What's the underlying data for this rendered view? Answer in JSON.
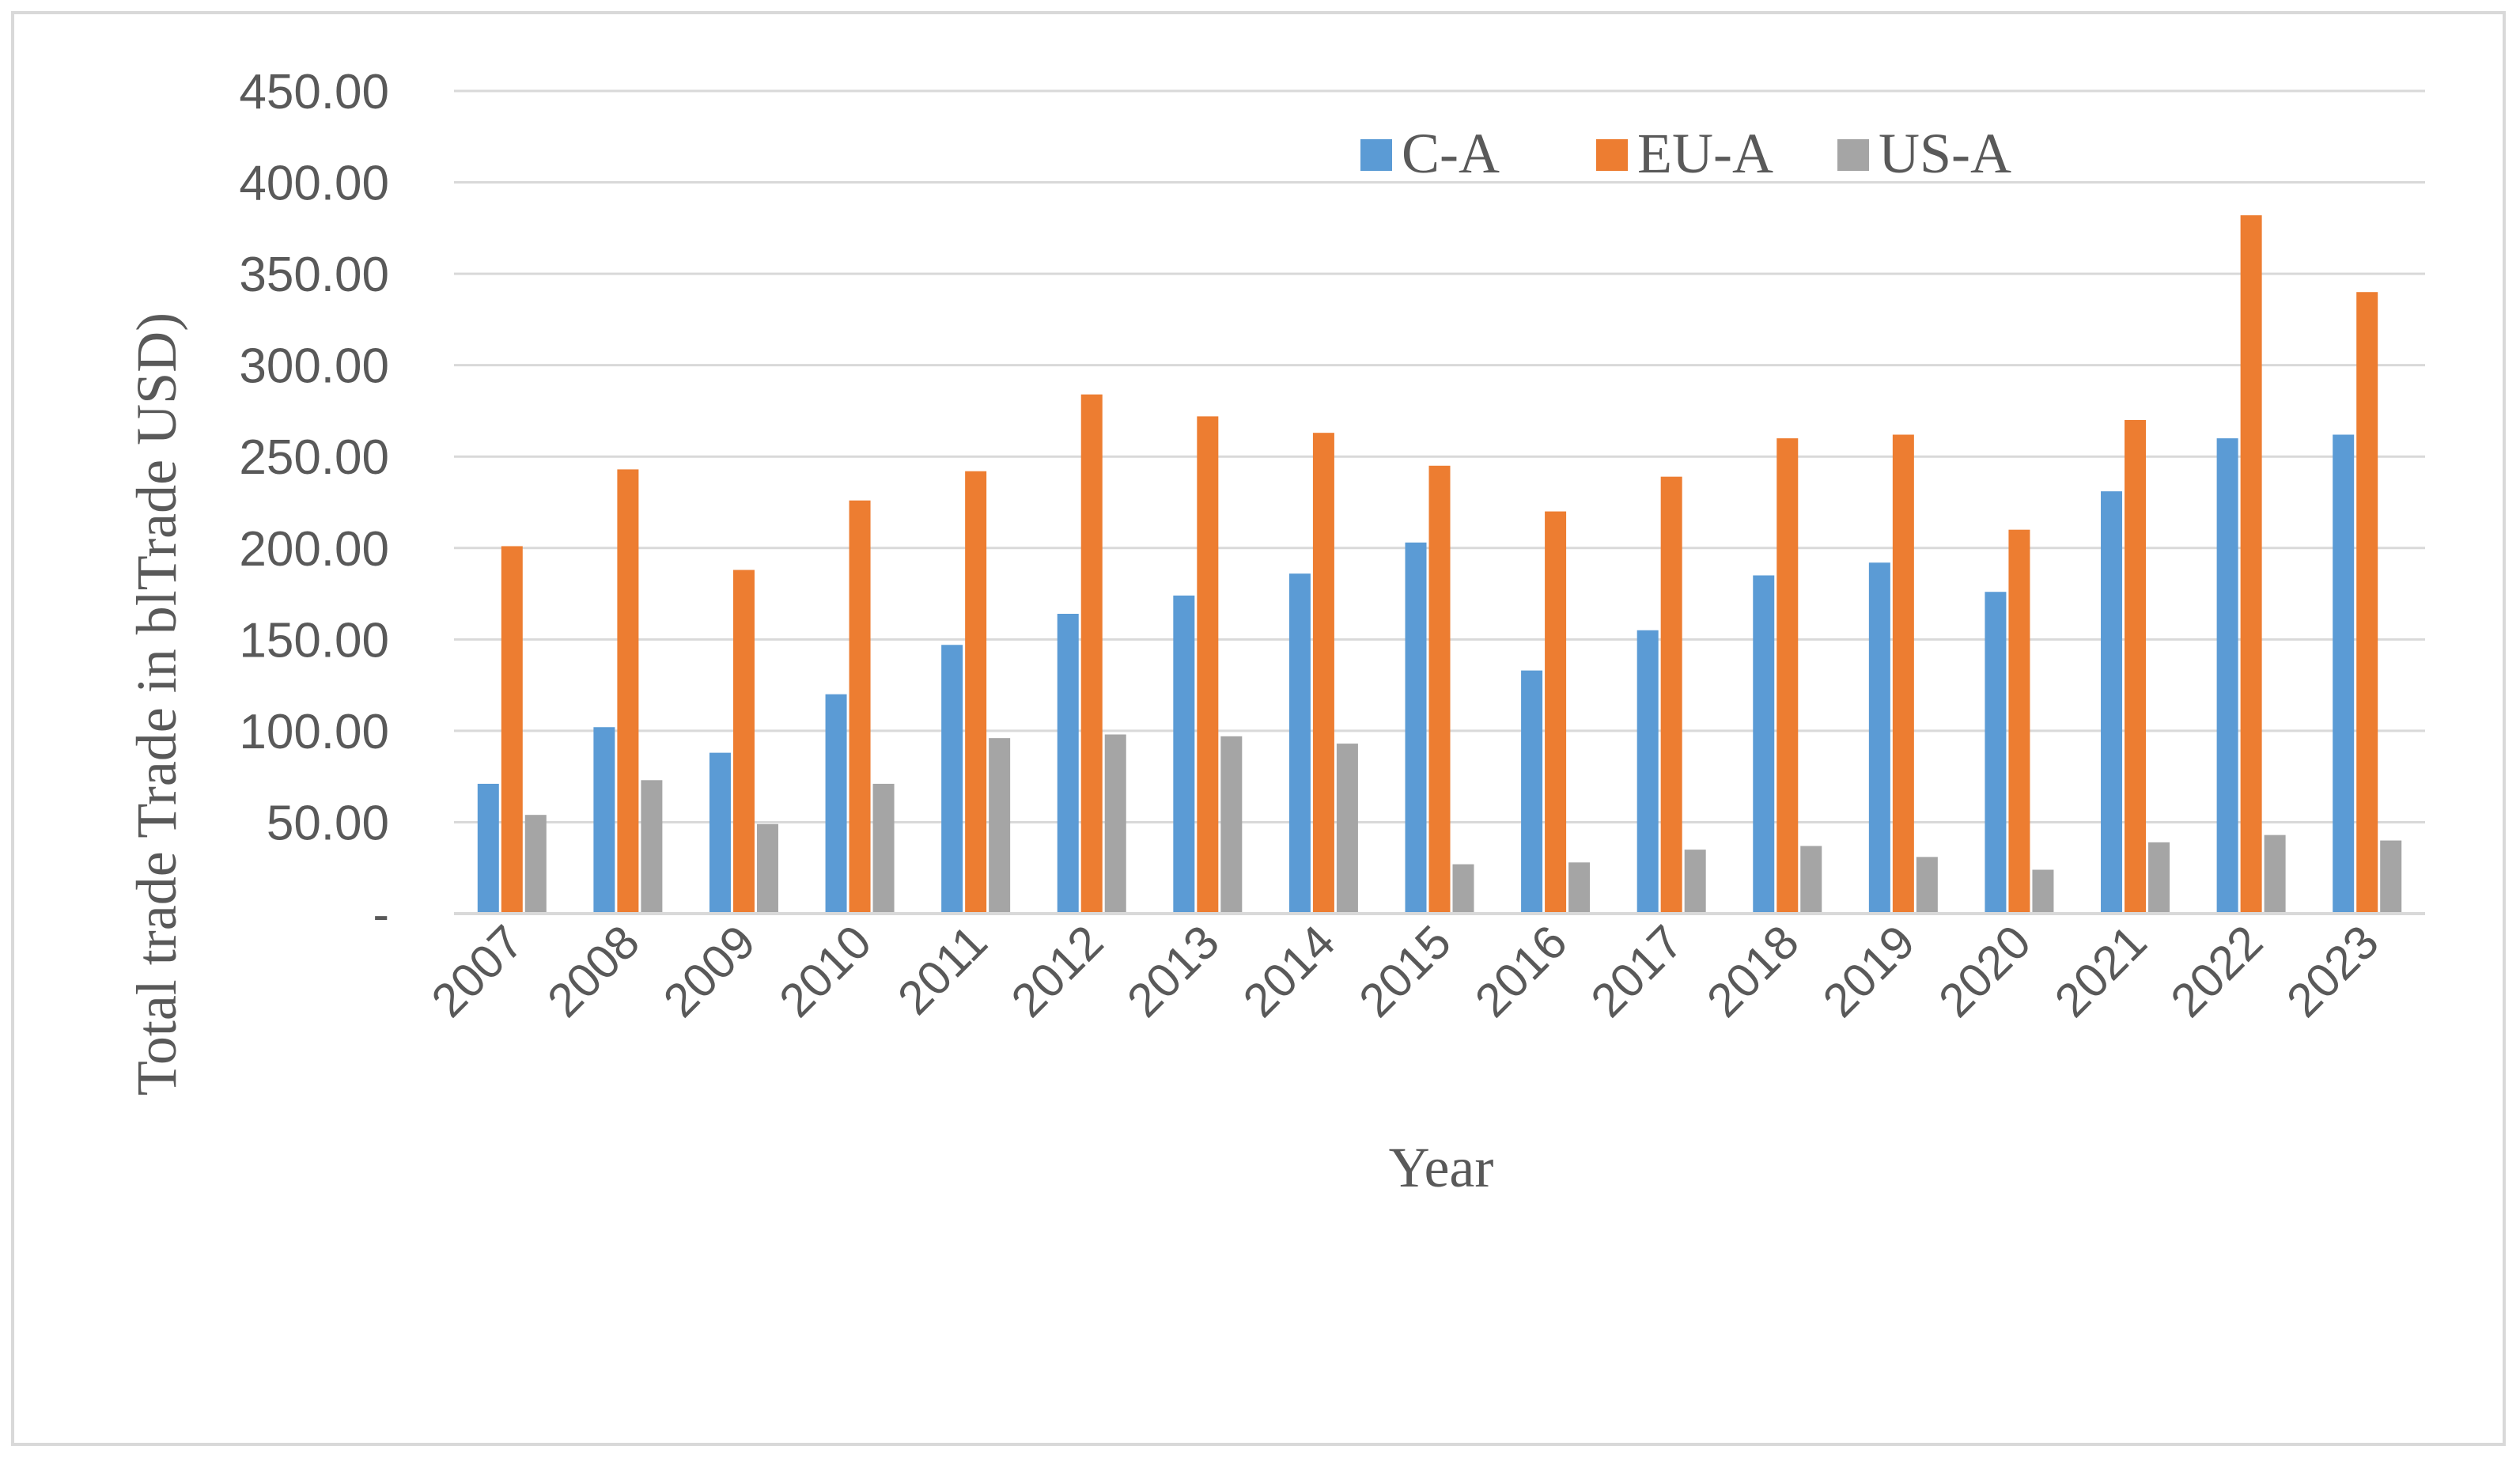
{
  "chart_data": {
    "type": "bar",
    "title": "",
    "xlabel": "Year",
    "ylabel": "Total trade Trade in blTrade  USD)",
    "ylim": [
      0,
      450
    ],
    "y_ticks": [
      0,
      50,
      100,
      150,
      200,
      250,
      300,
      350,
      400,
      450
    ],
    "y_tick_labels": [
      "-",
      "50.00",
      "100.00",
      "150.00",
      "200.00",
      "250.00",
      "300.00",
      "350.00",
      "400.00",
      "450.00"
    ],
    "grid": true,
    "legend_position": "top-right",
    "categories": [
      "2007",
      "2008",
      "2009",
      "2010",
      "2011",
      "2012",
      "2013",
      "2014",
      "2015",
      "2016",
      "2017",
      "2018",
      "2019",
      "2020",
      "2021",
      "2022",
      "2023"
    ],
    "series": [
      {
        "name": "C-A",
        "color": "#5b9bd5",
        "values": [
          71,
          102,
          88,
          120,
          147,
          164,
          174,
          186,
          203,
          133,
          155,
          185,
          192,
          176,
          231,
          260,
          262
        ]
      },
      {
        "name": "EU-A",
        "color": "#ed7d31",
        "values": [
          201,
          243,
          188,
          226,
          242,
          284,
          272,
          263,
          245,
          220,
          239,
          260,
          262,
          210,
          270,
          382,
          340
        ]
      },
      {
        "name": "US-A",
        "color": "#a5a5a5",
        "values": [
          54,
          73,
          49,
          71,
          96,
          98,
          97,
          93,
          27,
          28,
          35,
          37,
          31,
          24,
          39,
          43,
          40
        ]
      }
    ]
  }
}
